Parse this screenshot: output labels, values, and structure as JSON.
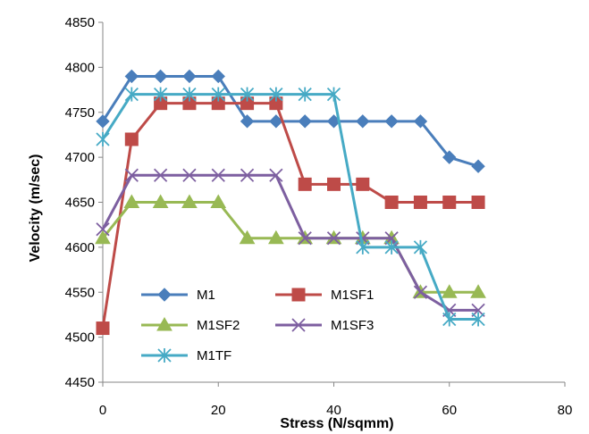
{
  "chart_data": {
    "type": "line",
    "title": "",
    "xlabel": "Stress (N/sqmm)",
    "ylabel": "Velocity (m/sec)",
    "xlim": [
      0,
      80
    ],
    "ylim": [
      4450,
      4850
    ],
    "xticks": [
      0,
      20,
      40,
      60,
      80
    ],
    "yticks": [
      4450,
      4500,
      4550,
      4600,
      4650,
      4700,
      4750,
      4800,
      4850
    ],
    "grid": false,
    "legend_position": "bottom-left inside",
    "x": [
      0,
      5,
      10,
      15,
      20,
      25,
      30,
      35,
      40,
      45,
      50,
      55,
      60,
      65
    ],
    "series": [
      {
        "name": "M1",
        "color": "#4a7ebb",
        "marker": "diamond",
        "values": [
          4740,
          4790,
          4790,
          4790,
          4790,
          4740,
          4740,
          4740,
          4740,
          4740,
          4740,
          4740,
          4700,
          4690
        ]
      },
      {
        "name": "M1SF1",
        "color": "#be4b48",
        "marker": "square",
        "values": [
          4510,
          4720,
          4760,
          4760,
          4760,
          4760,
          4760,
          4670,
          4670,
          4670,
          4650,
          4650,
          4650,
          4650
        ]
      },
      {
        "name": "M1SF2",
        "color": "#98b954",
        "marker": "triangle",
        "values": [
          4610,
          4650,
          4650,
          4650,
          4650,
          4610,
          4610,
          4610,
          4610,
          4610,
          4610,
          4550,
          4550,
          4550
        ]
      },
      {
        "name": "M1SF3",
        "color": "#7d5fa0",
        "marker": "x",
        "values": [
          4620,
          4680,
          4680,
          4680,
          4680,
          4680,
          4680,
          4610,
          4610,
          4610,
          4610,
          4550,
          4530,
          4530
        ]
      },
      {
        "name": "M1TF",
        "color": "#46aac5",
        "marker": "star",
        "values": [
          4720,
          4770,
          4770,
          4770,
          4770,
          4770,
          4770,
          4770,
          4770,
          4600,
          4600,
          4600,
          4520,
          4520
        ]
      }
    ]
  }
}
